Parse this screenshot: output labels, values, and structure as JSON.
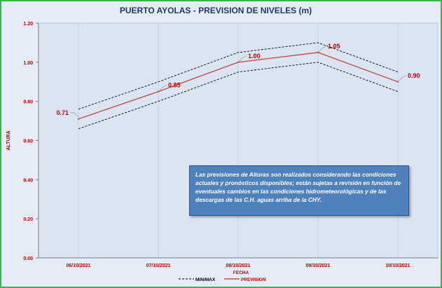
{
  "chart_data": {
    "type": "line",
    "title": "PUERTO AYOLAS - PREVISION DE NIVELES (m)",
    "xlabel": "FECHA",
    "ylabel": "ALTURA",
    "categories": [
      "06/10/2021",
      "07/10/2021",
      "08/10/2021",
      "09/10/2021",
      "10/10/2021"
    ],
    "ylim": [
      0,
      1.2
    ],
    "yticks": [
      "0.00",
      "0.20",
      "0.40",
      "0.60",
      "0.80",
      "1.00",
      "1.20"
    ],
    "grid": "vertical",
    "legend_position": "bottom",
    "series": [
      {
        "name": "PREVISION",
        "values": [
          0.71,
          0.85,
          1.0,
          1.05,
          0.9
        ],
        "color": "#c0504d",
        "labels": [
          "0.71",
          "0.85",
          "1.00",
          "1.05",
          "0.90"
        ]
      },
      {
        "name": "MIN/MAX",
        "role": "upper",
        "values": [
          0.76,
          0.9,
          1.05,
          1.1,
          0.95
        ],
        "color": "#000000",
        "dash": true
      },
      {
        "name": "MIN/MAX",
        "role": "lower",
        "values": [
          0.66,
          0.8,
          0.95,
          1.0,
          0.85
        ],
        "color": "#000000",
        "dash": true
      }
    ],
    "annotation": "Las previsiones de Alturas son realizados considerando las condiciones actuales y pronósticos disponibles; están sujetas a revisión en función de eventuales cambios en las condiciones hidrometeorológicas y de las descargas de las C.H. aguas arriba de la CHY.",
    "colors": {
      "title": "#1f3864",
      "axis_text": "#c00000",
      "background": "#e4ecf5",
      "note_bg": "#4f81bd",
      "border": "#39b54a"
    }
  }
}
